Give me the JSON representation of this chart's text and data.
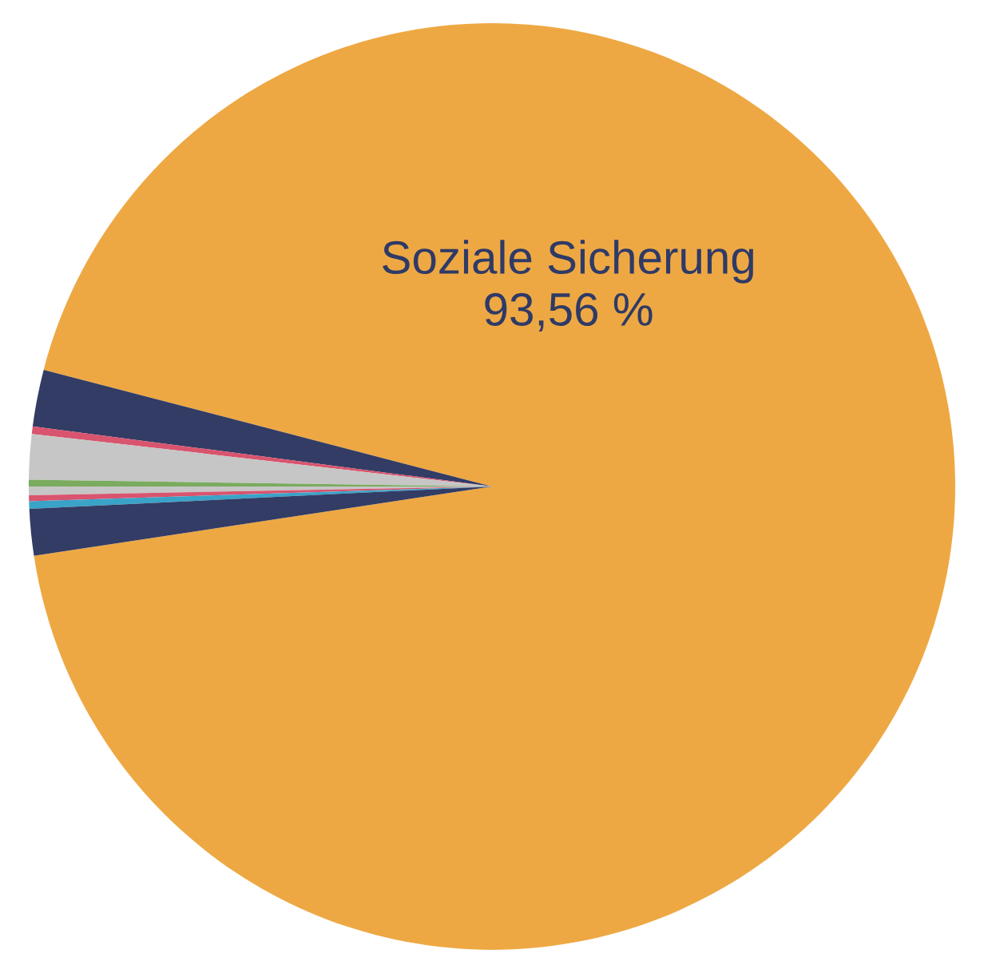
{
  "chart_data": {
    "type": "pie",
    "categories": [
      "Soziale Sicherung",
      null,
      null,
      null,
      null,
      null,
      null,
      null,
      null
    ],
    "values": [
      93.56,
      1.98,
      0.26,
      1.58,
      0.23,
      0.3,
      0.21,
      0.26,
      1.62
    ],
    "value_labels": [
      "93,56 %",
      null,
      null,
      null,
      null,
      null,
      null,
      null,
      null
    ],
    "colors": [
      "#eea843",
      "#323c64",
      "#d9546e",
      "#c6c6c6",
      "#7aab5e",
      "#c6c6c6",
      "#d9546e",
      "#3aa3c8",
      "#323c64"
    ],
    "legend": false
  }
}
